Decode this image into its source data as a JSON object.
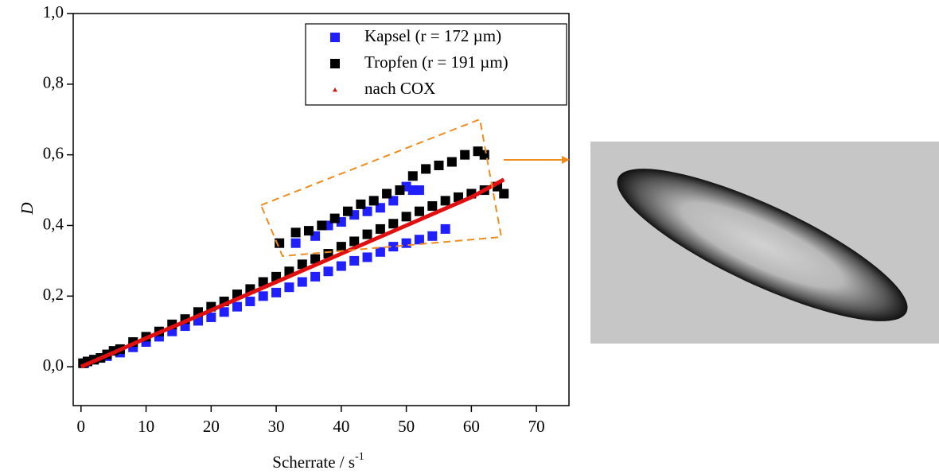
{
  "chart_data": {
    "type": "scatter",
    "x_label": "Scherrate / s",
    "x_label_sup": "-1",
    "y_label": "D",
    "xlim": [
      -1.2,
      75
    ],
    "ylim": [
      -0.11,
      1.0
    ],
    "xticks": [
      0,
      10,
      20,
      30,
      40,
      50,
      60,
      70
    ],
    "yticks": [
      {
        "value": 0.0,
        "label": "0,0"
      },
      {
        "value": 0.2,
        "label": "0,2"
      },
      {
        "value": 0.4,
        "label": "0,4"
      },
      {
        "value": 0.6,
        "label": "0,6"
      },
      {
        "value": 0.8,
        "label": "0,8"
      },
      {
        "value": 1.0,
        "label": "1,0"
      }
    ],
    "legend": "top-right",
    "series": [
      {
        "name": "Kapsel (r = 172 µm)",
        "color": "#1f1fff",
        "marker": "square",
        "x": [
          0.5,
          2,
          4,
          6,
          8,
          10,
          12,
          14,
          16,
          18,
          20,
          22,
          24,
          26,
          28,
          30,
          32,
          34,
          36,
          38,
          40,
          42,
          44,
          46,
          48,
          50,
          52,
          54,
          56,
          33,
          36,
          38,
          40,
          42,
          44,
          46,
          48,
          50,
          51,
          52
        ],
        "values": [
          0.01,
          0.02,
          0.03,
          0.04,
          0.055,
          0.07,
          0.085,
          0.1,
          0.115,
          0.13,
          0.14,
          0.155,
          0.17,
          0.185,
          0.2,
          0.21,
          0.225,
          0.24,
          0.255,
          0.27,
          0.285,
          0.3,
          0.31,
          0.325,
          0.34,
          0.35,
          0.36,
          0.37,
          0.39,
          0.35,
          0.37,
          0.4,
          0.41,
          0.43,
          0.44,
          0.45,
          0.47,
          0.51,
          0.5,
          0.5
        ]
      },
      {
        "name": "Tropfen (r = 191 µm)",
        "color": "#000000",
        "marker": "square",
        "x": [
          0.3,
          1,
          2,
          3,
          4,
          5,
          6,
          8,
          10,
          12,
          14,
          16,
          18,
          20,
          22,
          24,
          26,
          28,
          30,
          32,
          34,
          36,
          38,
          40,
          42,
          44,
          46,
          48,
          50,
          52,
          54,
          56,
          58,
          60,
          62,
          64,
          65,
          30.5,
          33,
          35,
          37,
          39,
          41,
          43,
          45,
          47,
          49,
          51,
          53,
          55,
          57,
          59,
          61,
          62
        ],
        "values": [
          0.01,
          0.015,
          0.02,
          0.025,
          0.035,
          0.045,
          0.05,
          0.07,
          0.085,
          0.1,
          0.12,
          0.135,
          0.155,
          0.17,
          0.185,
          0.205,
          0.22,
          0.24,
          0.255,
          0.27,
          0.29,
          0.305,
          0.32,
          0.34,
          0.355,
          0.375,
          0.39,
          0.405,
          0.425,
          0.44,
          0.455,
          0.47,
          0.48,
          0.49,
          0.5,
          0.51,
          0.49,
          0.35,
          0.38,
          0.385,
          0.4,
          0.42,
          0.44,
          0.46,
          0.47,
          0.49,
          0.5,
          0.54,
          0.56,
          0.57,
          0.58,
          0.6,
          0.61,
          0.6
        ]
      },
      {
        "name": "nach COX",
        "color": "#e01010",
        "marker": "triangle",
        "x": [
          0,
          5,
          10,
          15,
          20,
          25,
          30,
          35,
          40,
          45,
          50,
          55,
          60,
          65
        ],
        "values": [
          0,
          0.04,
          0.081,
          0.12,
          0.16,
          0.2,
          0.24,
          0.28,
          0.32,
          0.36,
          0.4,
          0.44,
          0.48,
          0.53
        ]
      }
    ]
  }
}
